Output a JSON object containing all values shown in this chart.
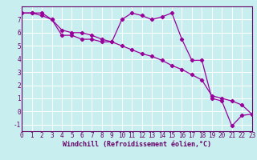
{
  "title": "",
  "xlabel": "Windchill (Refroidissement éolien,°C)",
  "bg_color": "#c8eef0",
  "line_color": "#990099",
  "grid_color": "#ffffff",
  "spine_color": "#660066",
  "x_hours": [
    0,
    1,
    2,
    3,
    4,
    5,
    6,
    7,
    8,
    9,
    10,
    11,
    12,
    13,
    14,
    15,
    16,
    17,
    18,
    19,
    20,
    21,
    22,
    23
  ],
  "y_actual": [
    7.5,
    7.5,
    7.5,
    7.0,
    5.8,
    5.8,
    5.5,
    5.5,
    5.3,
    5.3,
    7.0,
    7.5,
    7.3,
    7.0,
    7.2,
    7.5,
    5.5,
    3.9,
    3.9,
    1.0,
    0.8,
    -1.1,
    -0.3,
    -0.2
  ],
  "y_trend": [
    7.5,
    7.5,
    7.3,
    7.0,
    6.2,
    6.0,
    6.0,
    5.8,
    5.5,
    5.3,
    5.0,
    4.7,
    4.4,
    4.2,
    3.9,
    3.5,
    3.2,
    2.8,
    2.4,
    1.2,
    1.0,
    0.8,
    0.5,
    -0.2
  ],
  "xlim": [
    0,
    23
  ],
  "ylim": [
    -1.5,
    8.0
  ],
  "yticks": [
    -1,
    0,
    1,
    2,
    3,
    4,
    5,
    6,
    7
  ],
  "xticks": [
    0,
    1,
    2,
    3,
    4,
    5,
    6,
    7,
    8,
    9,
    10,
    11,
    12,
    13,
    14,
    15,
    16,
    17,
    18,
    19,
    20,
    21,
    22,
    23
  ],
  "tick_fontsize": 5.5,
  "label_fontsize": 6.0
}
